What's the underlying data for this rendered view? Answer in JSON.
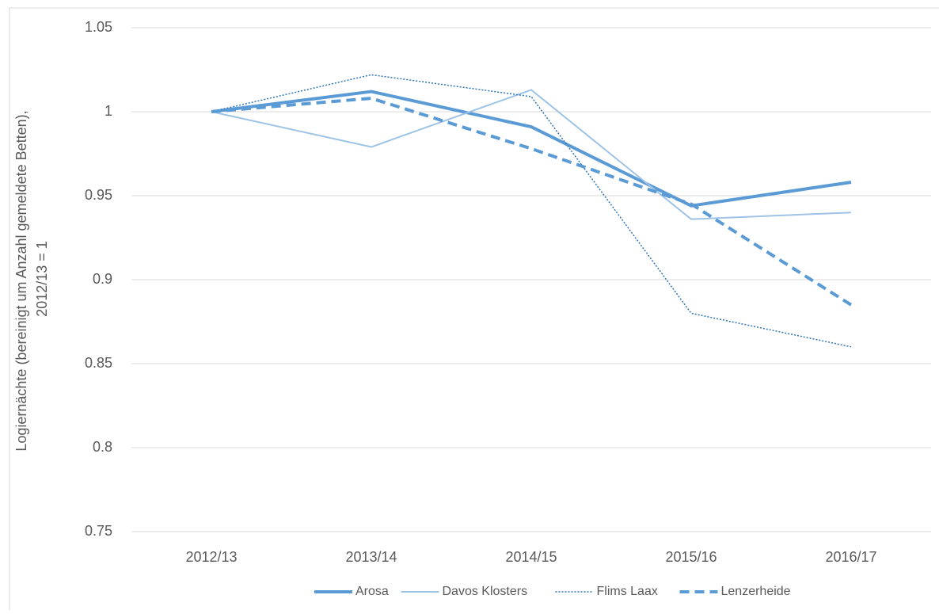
{
  "chart_data": {
    "type": "line",
    "y_label": [
      "Logiernächte (bereinigt um Anzahl gemeldete Betten),",
      "2012/13 = 1"
    ],
    "categories": [
      "2012/13",
      "2013/14",
      "2014/15",
      "2015/16",
      "2016/17"
    ],
    "series": [
      {
        "name": "Arosa",
        "color": "#5b9bd5",
        "width": 4,
        "dash": "none",
        "values": [
          1.0,
          1.012,
          0.991,
          0.944,
          0.958
        ]
      },
      {
        "name": "Davos Klosters",
        "color": "#9dc3e6",
        "width": 2,
        "dash": "none",
        "values": [
          1.0,
          0.979,
          1.013,
          0.936,
          0.94
        ]
      },
      {
        "name": "Flims Laax",
        "color": "#2e75b6",
        "width": 1.5,
        "dash": "2 2",
        "values": [
          1.0,
          1.022,
          1.009,
          0.88,
          0.86
        ]
      },
      {
        "name": "Lenzerheide",
        "color": "#5b9bd5",
        "width": 4,
        "dash": "12 7",
        "values": [
          1.0,
          1.008,
          0.978,
          0.945,
          0.885
        ]
      }
    ],
    "ylim": [
      0.75,
      1.05
    ],
    "yticks": [
      0.75,
      0.8,
      0.85,
      0.9,
      0.95,
      1,
      1.05
    ],
    "grid": true,
    "legend": "bottom"
  }
}
